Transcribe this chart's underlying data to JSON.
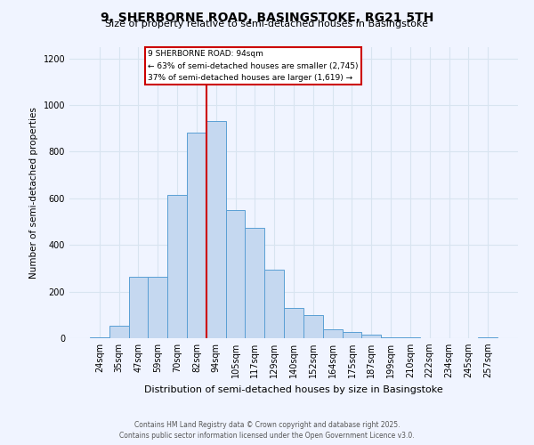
{
  "title": "9, SHERBORNE ROAD, BASINGSTOKE, RG21 5TH",
  "subtitle": "Size of property relative to semi-detached houses in Basingstoke",
  "xlabel": "Distribution of semi-detached houses by size in Basingstoke",
  "ylabel": "Number of semi-detached properties",
  "bar_color": "#c5d8f0",
  "bar_edge_color": "#5a9fd4",
  "background_color": "#f0f4ff",
  "grid_color": "#d8e4f0",
  "categories": [
    "24sqm",
    "35sqm",
    "47sqm",
    "59sqm",
    "70sqm",
    "82sqm",
    "94sqm",
    "105sqm",
    "117sqm",
    "129sqm",
    "140sqm",
    "152sqm",
    "164sqm",
    "175sqm",
    "187sqm",
    "199sqm",
    "210sqm",
    "222sqm",
    "234sqm",
    "245sqm",
    "257sqm"
  ],
  "values": [
    5,
    55,
    265,
    265,
    615,
    880,
    930,
    550,
    475,
    295,
    130,
    100,
    40,
    25,
    15,
    5,
    2,
    1,
    1,
    0,
    3
  ],
  "vline_x_idx": 6,
  "vline_color": "#cc0000",
  "annotation_title": "9 SHERBORNE ROAD: 94sqm",
  "annotation_line1": "← 63% of semi-detached houses are smaller (2,745)",
  "annotation_line2": "37% of semi-detached houses are larger (1,619) →",
  "annotation_box_color": "#ffffff",
  "annotation_box_edge": "#cc0000",
  "ylim": [
    0,
    1250
  ],
  "yticks": [
    0,
    200,
    400,
    600,
    800,
    1000,
    1200
  ],
  "footer1": "Contains HM Land Registry data © Crown copyright and database right 2025.",
  "footer2": "Contains public sector information licensed under the Open Government Licence v3.0."
}
